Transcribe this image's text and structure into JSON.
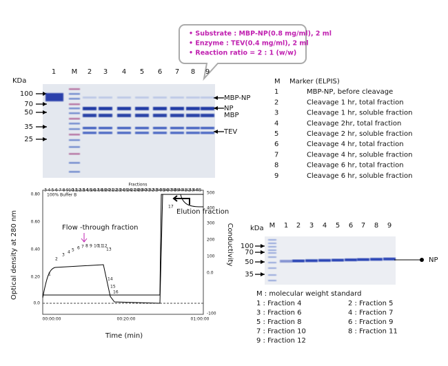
{
  "callout": [
    "• Substrate : MBP-NP(0.8 mg/ml), 2 ml",
    "• Enzyme : TEV(0.4 mg/ml), 2 ml",
    "• Reaction ratio = 2 : 1 (w/w)"
  ],
  "gel1": {
    "kda": "KDa",
    "lanes": [
      "1",
      "M",
      "2",
      "3",
      "4",
      "5",
      "6",
      "7",
      "8",
      "9"
    ],
    "mw": [
      "100",
      "70",
      "50",
      "35",
      "25"
    ],
    "bands": [
      "MBP-NP",
      "NP",
      "MBP",
      "TEV"
    ]
  },
  "legend1": [
    [
      "M",
      "Marker (ELPIS)"
    ],
    [
      "1",
      "MBP-NP, before cleavage"
    ],
    [
      "2",
      "Cleavage 1 hr, total fraction"
    ],
    [
      "3",
      "Cleavage 1 hr, soluble fraction"
    ],
    [
      "4",
      "Cleavage 2hr, total fraction"
    ],
    [
      "5",
      "Cleavage 2 hr, soluble fraction"
    ],
    [
      "6",
      "Cleavage 4 hr, total fraction"
    ],
    [
      "7",
      "Cleavage 4 hr, soluble fraction"
    ],
    [
      "8",
      "Cleavage  6 hr, total fraction"
    ],
    [
      "9",
      "Cleavage 6 hr, soluble fraction"
    ]
  ],
  "chromatogram": {
    "top_title": "Fractions",
    "buffer": "100% Buffer B",
    "fractions": [
      "3",
      "4",
      "5",
      "6",
      "7",
      "8",
      "9",
      "10",
      "11",
      "12",
      "13",
      "14",
      "15",
      "16",
      "17",
      "18",
      "19",
      "20",
      "21",
      "22",
      "23",
      "24",
      "25",
      "26",
      "27",
      "28",
      "29",
      "30",
      "31",
      "32",
      "33",
      "34",
      "35",
      "36",
      "37",
      "38",
      "39",
      "40",
      "41",
      "42",
      "43",
      "44",
      "45"
    ],
    "curve_labels": [
      "1",
      "2",
      "3",
      "4",
      "5",
      "6",
      "7",
      "8",
      "9",
      "10",
      "11",
      "12",
      "13",
      "14",
      "15",
      "16",
      "17"
    ],
    "y_label": "Optical density at 280 nm",
    "y2_label": "Conductivity",
    "x_label": "Time (min)",
    "yticks": [
      "0.80",
      "0.60",
      "0.40",
      "0.20",
      "0.0"
    ],
    "y2ticks": [
      "500",
      "400",
      "300",
      "200",
      "100",
      "0.0",
      "-100"
    ],
    "xticks": [
      "00:00:00",
      "00:20:00",
      "01:00:00"
    ],
    "flow": "Flow -through fraction",
    "elution": "Elution  fraction"
  },
  "gel2": {
    "kda": "kDa",
    "lanes": [
      "M",
      "1",
      "2",
      "3",
      "4",
      "5",
      "6",
      "7",
      "8",
      "9"
    ],
    "mw": [
      "100",
      "70",
      "50",
      "35"
    ],
    "band": "NP"
  },
  "legend2": {
    "title": "M : molecular weight standard",
    "rows": [
      [
        "1 : Fraction  4",
        "2 : Fraction  5"
      ],
      [
        "3 : Fraction  6",
        "4 : Fraction  7"
      ],
      [
        "5 : Fraction  8",
        "6 : Fraction  9"
      ],
      [
        "7 : Fraction  10",
        "8 : Fraction  11"
      ],
      [
        "9 : Fraction  12"
      ]
    ]
  }
}
